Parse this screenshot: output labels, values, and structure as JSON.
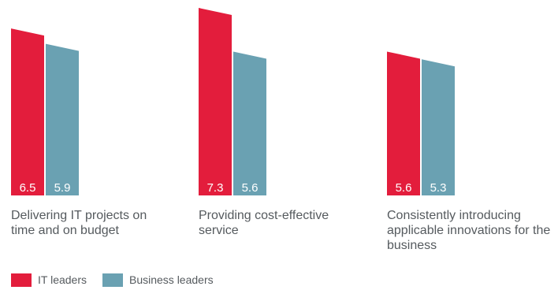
{
  "chart_data": {
    "type": "bar",
    "categories": [
      "Delivering IT projects on time and on budget",
      "Providing cost-effective service",
      "Consistently introducing applicable innovations for the business"
    ],
    "series": [
      {
        "name": "IT leaders",
        "values": [
          6.5,
          7.3,
          5.6
        ],
        "color": "#e31d3c"
      },
      {
        "name": "Business leaders",
        "values": [
          5.9,
          5.6,
          5.3
        ],
        "color": "#6aa1b2"
      }
    ],
    "value_labels": {
      "it": [
        "6.5",
        "7.3",
        "5.6"
      ],
      "business": [
        "5.9",
        "5.6",
        "5.3"
      ]
    },
    "legend_position": "bottom-left",
    "grid": false
  },
  "labels": {
    "cat1": "Delivering IT projects on time and on budget",
    "cat2": "Providing cost-effective service",
    "cat3": "Consistently introducing applicable innovations for the business"
  },
  "legend": {
    "it_label": "IT leaders",
    "business_label": "Business leaders"
  }
}
